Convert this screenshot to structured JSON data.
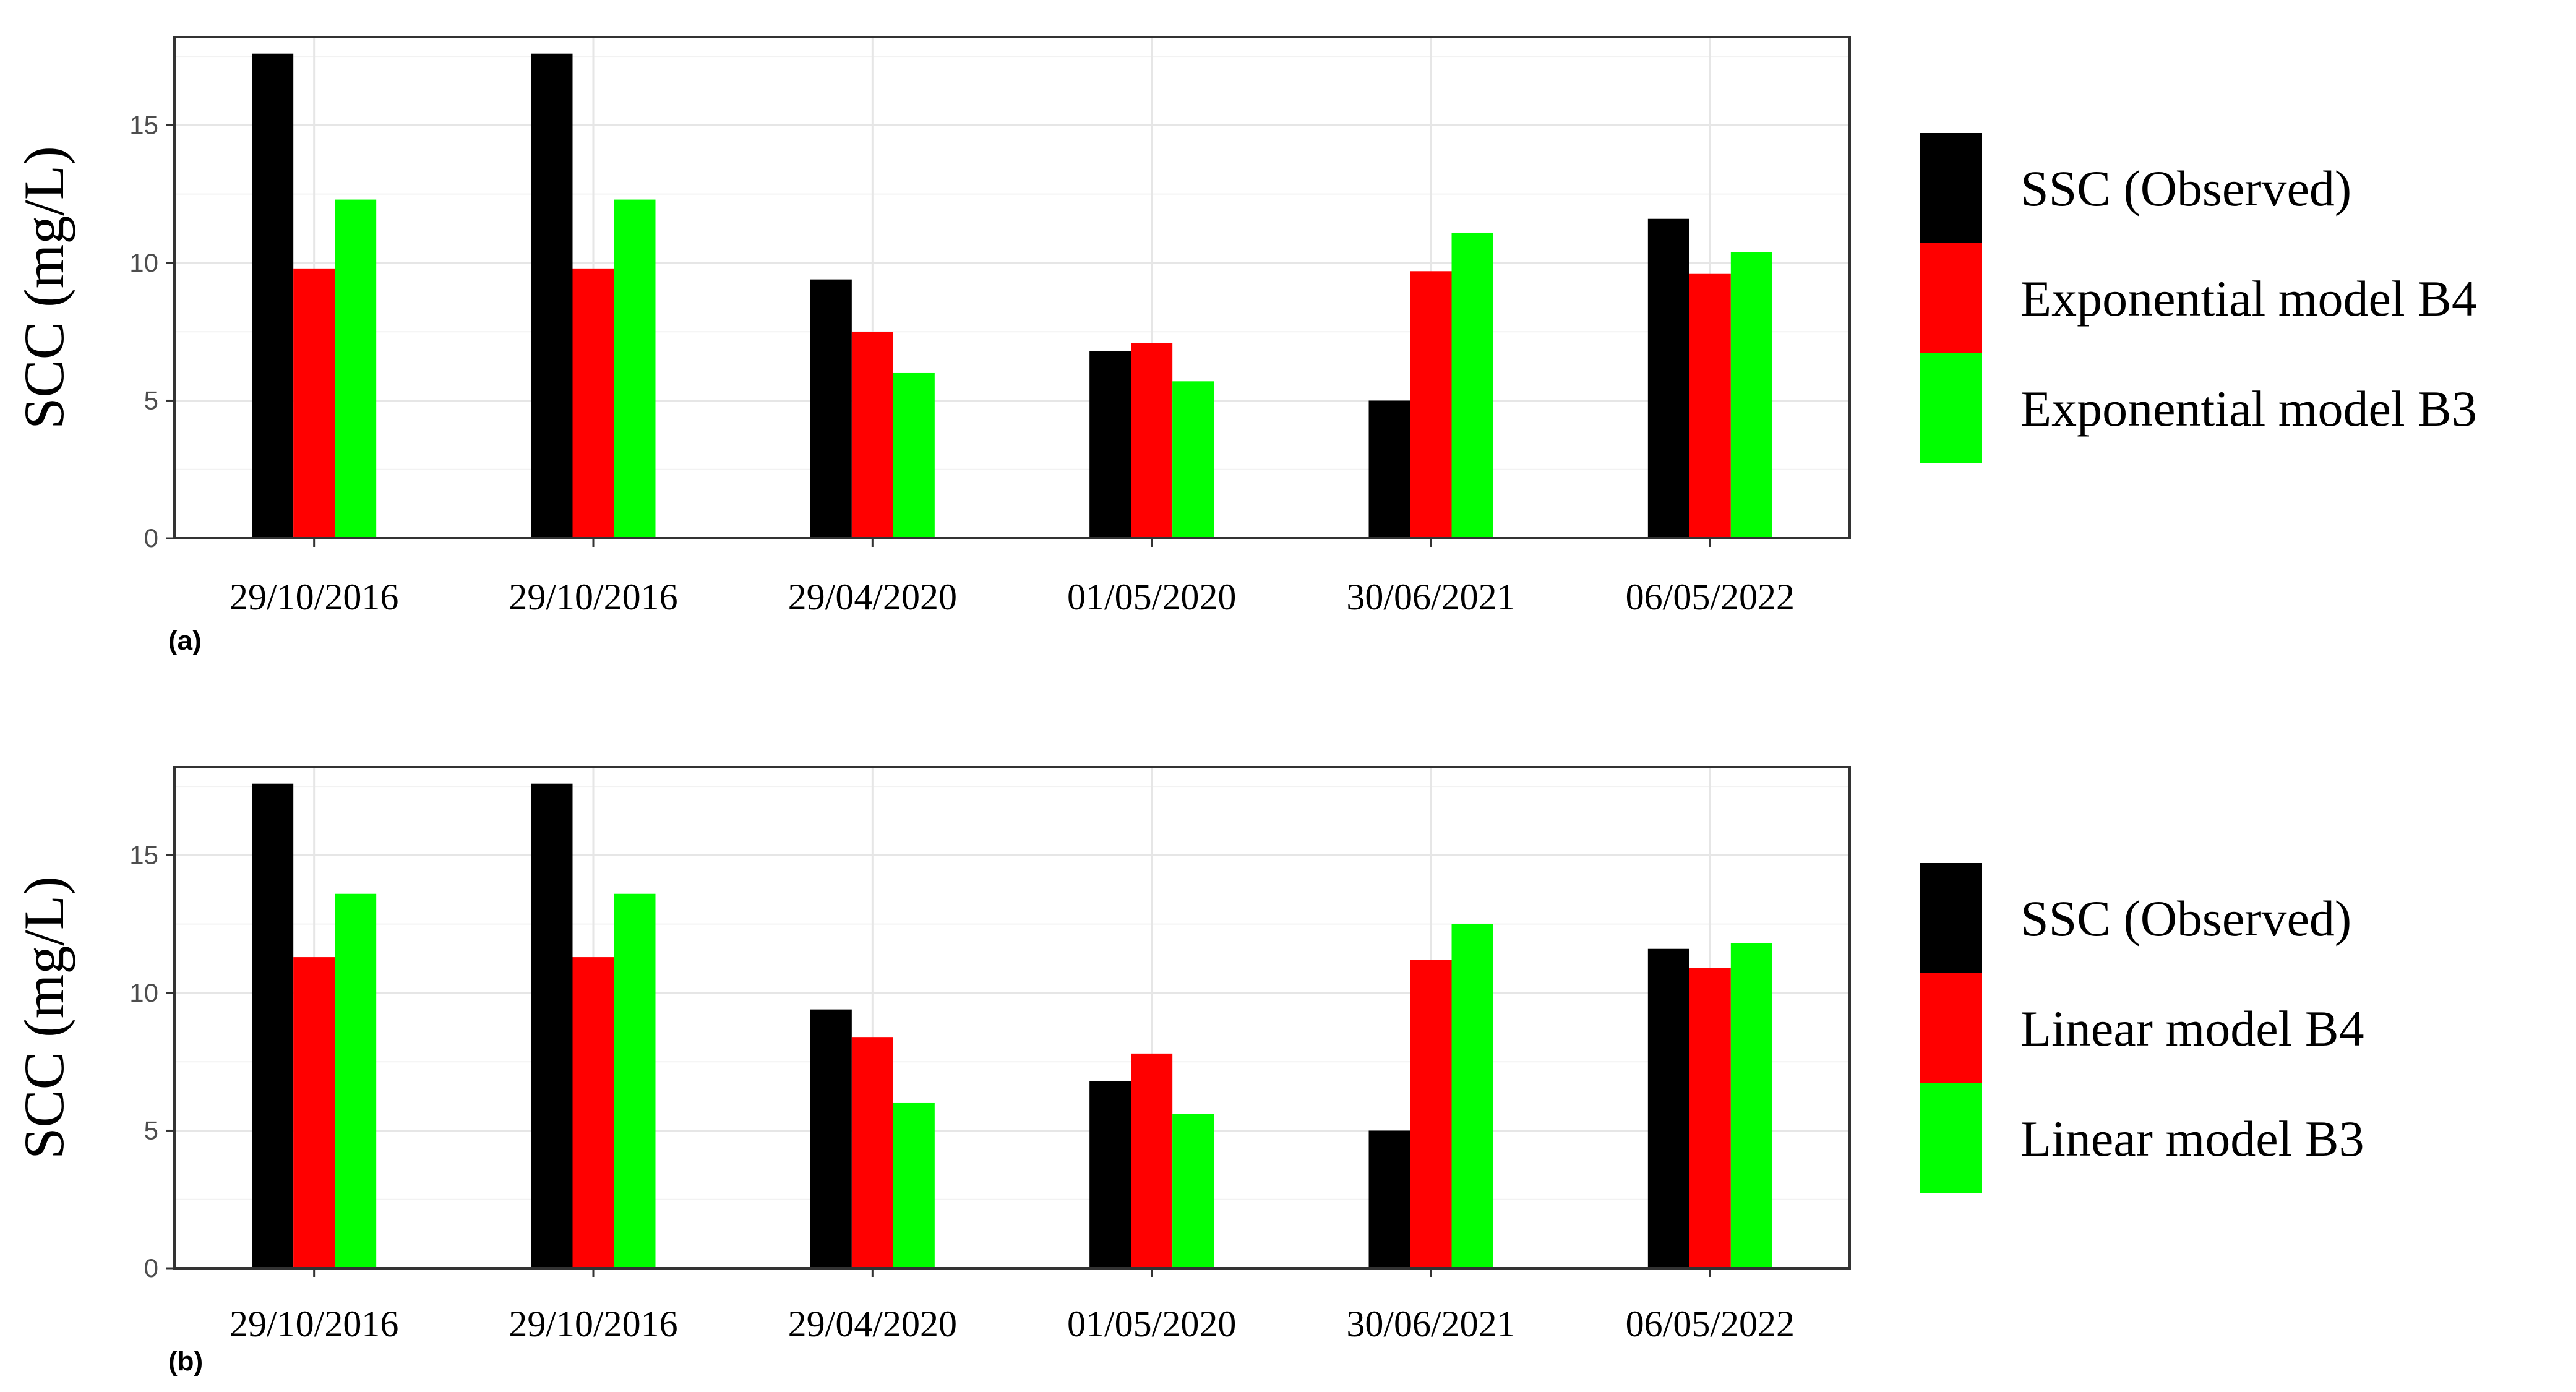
{
  "chart_data": [
    {
      "type": "bar",
      "panel_label": "(a)",
      "ylabel": "SCC (mg/L)",
      "xlabel": "",
      "ylim": [
        0,
        18.2
      ],
      "yticks": [
        0,
        5,
        10,
        15
      ],
      "grid": true,
      "legend_position": "right",
      "categories": [
        "29/10/2016",
        "29/10/2016",
        "29/04/2020",
        "01/05/2020",
        "30/06/2021",
        "06/05/2022"
      ],
      "series": [
        {
          "name": "SSC (Observed)",
          "color": "#000000",
          "values": [
            17.6,
            17.6,
            9.4,
            6.8,
            5.0,
            11.6
          ]
        },
        {
          "name": "Exponential model B4",
          "color": "#ff0000",
          "values": [
            9.8,
            9.8,
            7.5,
            7.1,
            9.7,
            9.6
          ]
        },
        {
          "name": "Exponential model B3",
          "color": "#00ff00",
          "values": [
            12.3,
            12.3,
            6.0,
            5.7,
            11.1,
            10.4
          ]
        }
      ]
    },
    {
      "type": "bar",
      "panel_label": "(b)",
      "ylabel": "SCC (mg/L)",
      "xlabel": "",
      "ylim": [
        0,
        18.2
      ],
      "yticks": [
        0,
        5,
        10,
        15
      ],
      "grid": true,
      "legend_position": "right",
      "categories": [
        "29/10/2016",
        "29/10/2016",
        "29/04/2020",
        "01/05/2020",
        "30/06/2021",
        "06/05/2022"
      ],
      "series": [
        {
          "name": "SSC (Observed)",
          "color": "#000000",
          "values": [
            17.6,
            17.6,
            9.4,
            6.8,
            5.0,
            11.6
          ]
        },
        {
          "name": "Linear model B4",
          "color": "#ff0000",
          "values": [
            11.3,
            11.3,
            8.4,
            7.8,
            11.2,
            10.9
          ]
        },
        {
          "name": "Linear model B3",
          "color": "#00ff00",
          "values": [
            13.6,
            13.6,
            6.0,
            5.6,
            12.5,
            11.8
          ]
        }
      ]
    }
  ]
}
